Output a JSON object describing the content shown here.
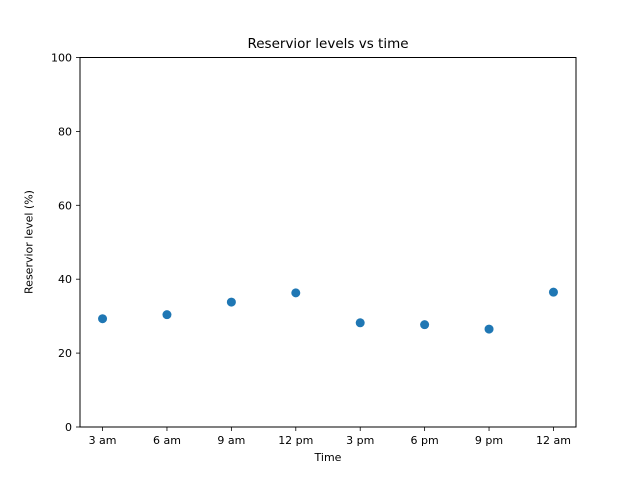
{
  "chart_data": {
    "type": "scatter",
    "title": "Reservior levels vs time",
    "xlabel": "Time",
    "ylabel": "Reservior level (%)",
    "categories": [
      "3 am",
      "6 am",
      "9 am",
      "12 pm",
      "3 pm",
      "6 pm",
      "9 pm",
      "12 am"
    ],
    "values": [
      29.3,
      30.4,
      33.8,
      36.3,
      28.2,
      27.7,
      26.5,
      36.5
    ],
    "ylim": [
      0,
      100
    ],
    "yticks": [
      0,
      20,
      40,
      60,
      80,
      100
    ],
    "grid": false,
    "legend": null,
    "marker_color": "#1f77b4",
    "axis_color": "#000000",
    "background_color": "#ffffff"
  }
}
